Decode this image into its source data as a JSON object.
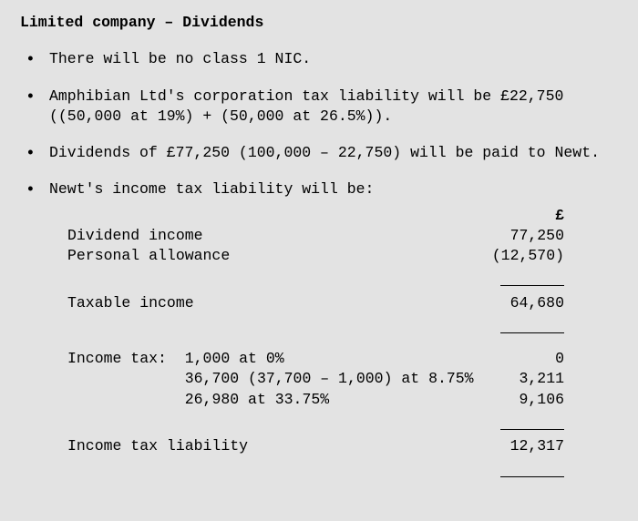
{
  "title": "Limited company – Dividends",
  "bullets": {
    "b1": "There will be no class 1 NIC.",
    "b2": "Amphibian Ltd's corporation tax liability will be £22,750 ((50,000 at 19%) + (50,000 at 26.5%)).",
    "b3": "Dividends of £77,250 (100,000 – 22,750) will be paid to Newt.",
    "b4": "Newt's income tax liability will be:"
  },
  "calc": {
    "currency_header": "£",
    "r1_label": "Dividend income",
    "r1_value": "77,250",
    "r2_label": "Personal allowance",
    "r2_value": "(12,570)",
    "r3_label": "Taxable income",
    "r3_value": "64,680",
    "tax_prefix": "Income tax:",
    "t1_label": "1,000 at 0%",
    "t1_value": "0",
    "t2_label": "36,700 (37,700 – 1,000) at 8.75%",
    "t2_value": "3,211",
    "t3_label": "26,980 at 33.75%",
    "t3_value": "9,106",
    "r4_label": "Income tax liability",
    "r4_value": "12,317"
  }
}
